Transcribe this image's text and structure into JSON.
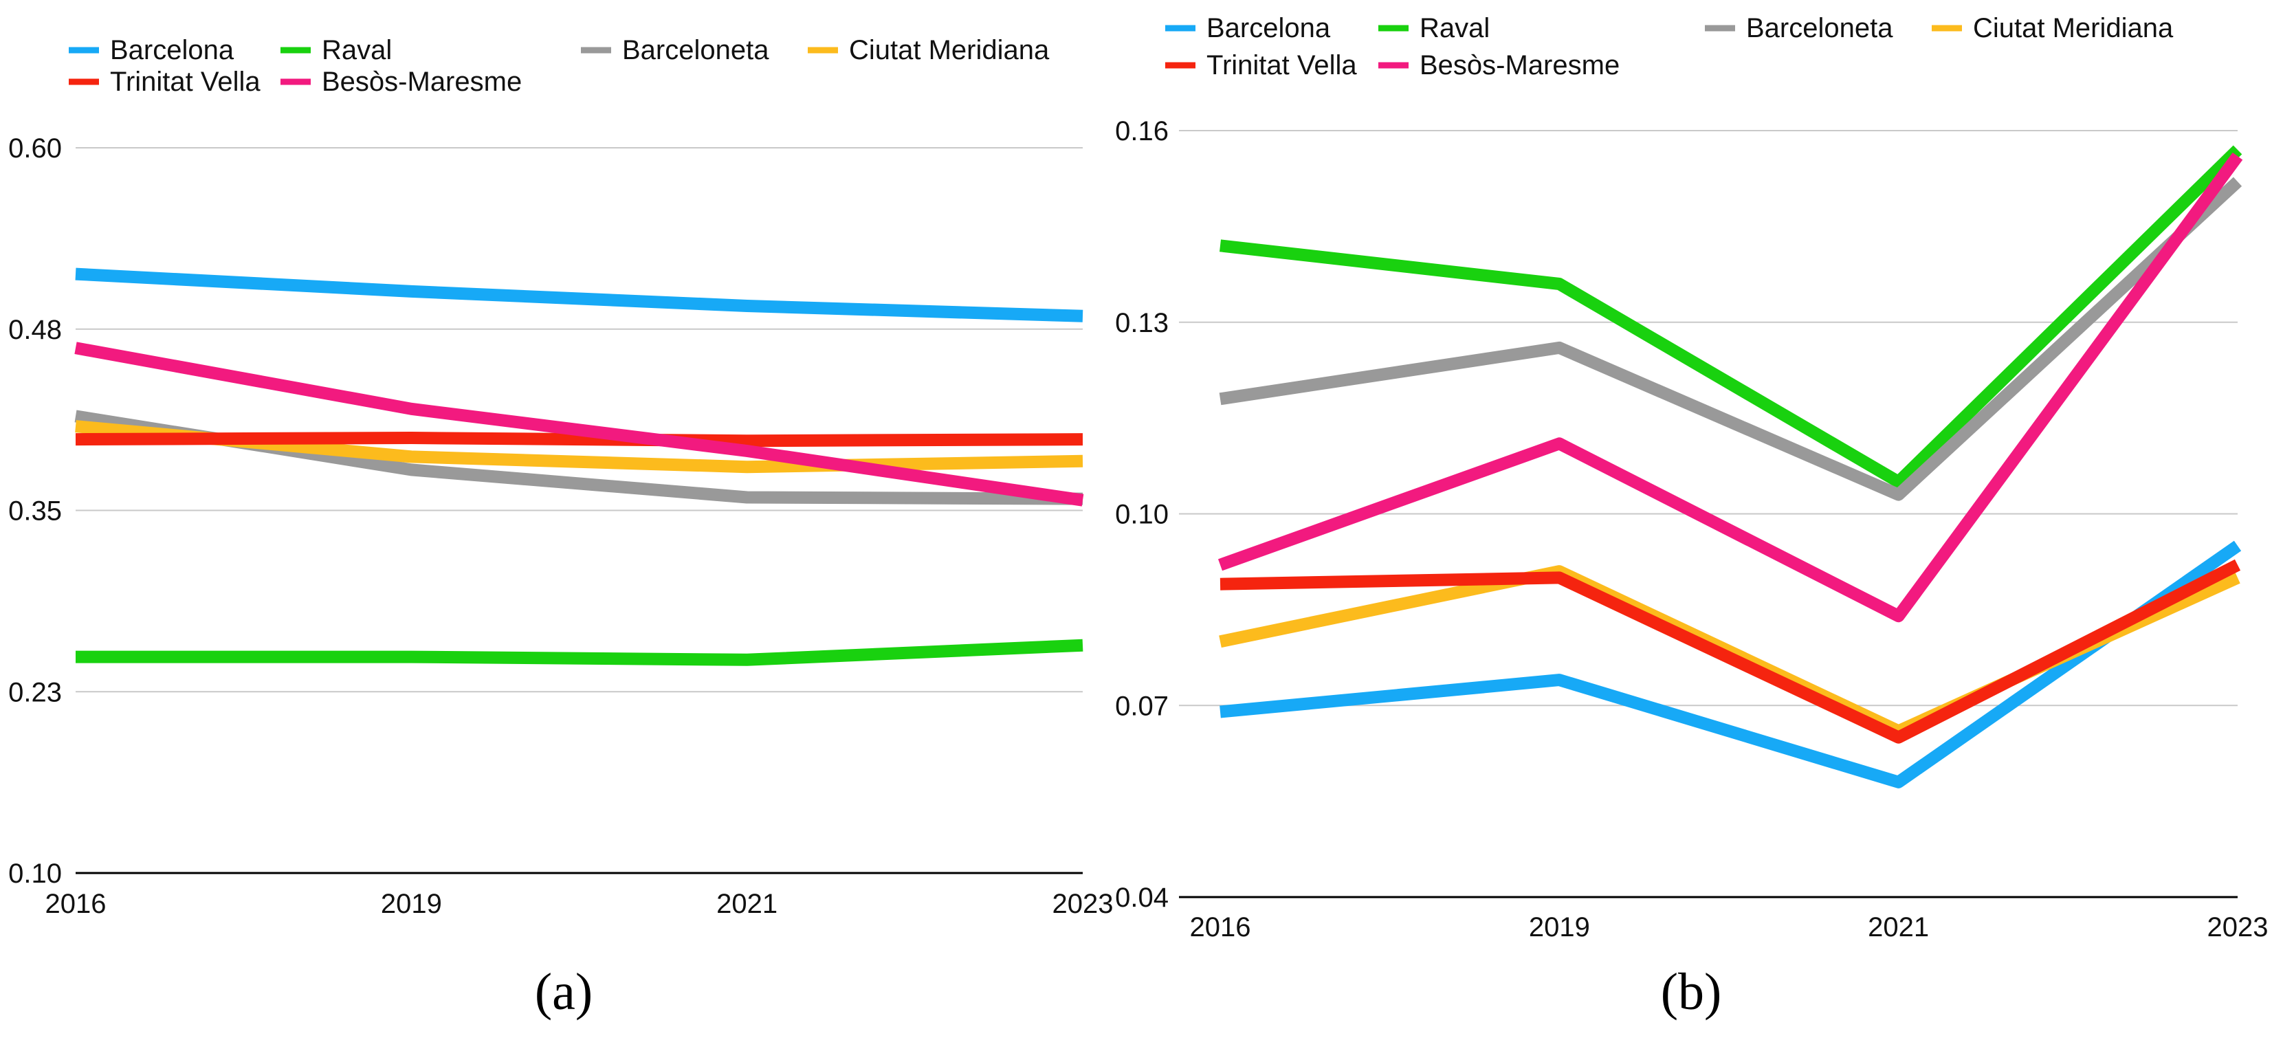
{
  "chart_data": [
    {
      "panel_label": "(a)",
      "type": "line",
      "x": [
        "2016",
        "2019",
        "2021",
        "2023"
      ],
      "ylim": [
        0.1,
        0.6
      ],
      "yticks": [
        "0.10",
        "0.23",
        "0.35",
        "0.48",
        "0.60"
      ],
      "ytick_values": [
        0.1,
        0.225,
        0.35,
        0.475,
        0.6
      ],
      "grid": true,
      "legend": "top",
      "series": [
        {
          "name": "Barcelona",
          "color": "#17a9f6",
          "values": [
            0.513,
            0.501,
            0.491,
            0.484
          ]
        },
        {
          "name": "Raval",
          "color": "#19d10f",
          "values": [
            0.249,
            0.249,
            0.247,
            0.257
          ]
        },
        {
          "name": "Barceloneta",
          "color": "#999999",
          "values": [
            0.415,
            0.378,
            0.359,
            0.358
          ]
        },
        {
          "name": "Ciutat Meridiana",
          "color": "#fcbb1d",
          "values": [
            0.408,
            0.387,
            0.38,
            0.384
          ]
        },
        {
          "name": "Trinitat Vella",
          "color": "#f5240f",
          "values": [
            0.399,
            0.4,
            0.398,
            0.399
          ]
        },
        {
          "name": "Besòs-Maresme",
          "color": "#f21a7f",
          "values": [
            0.462,
            0.42,
            0.391,
            0.357
          ]
        }
      ]
    },
    {
      "panel_label": "(b)",
      "type": "line",
      "x": [
        "2016",
        "2019",
        "2021",
        "2023"
      ],
      "ylim": [
        0.04,
        0.16
      ],
      "yticks": [
        "0.04",
        "0.07",
        "0.10",
        "0.13",
        "0.16"
      ],
      "ytick_values": [
        0.04,
        0.07,
        0.1,
        0.13,
        0.16
      ],
      "grid": true,
      "legend": "top",
      "series": [
        {
          "name": "Barcelona",
          "color": "#17a9f6",
          "values": [
            0.069,
            0.074,
            0.058,
            0.095
          ]
        },
        {
          "name": "Raval",
          "color": "#19d10f",
          "values": [
            0.142,
            0.136,
            0.105,
            0.157
          ]
        },
        {
          "name": "Barceloneta",
          "color": "#999999",
          "values": [
            0.118,
            0.126,
            0.103,
            0.152
          ]
        },
        {
          "name": "Ciutat Meridiana",
          "color": "#fcbb1d",
          "values": [
            0.08,
            0.091,
            0.066,
            0.09
          ]
        },
        {
          "name": "Trinitat Vella",
          "color": "#f5240f",
          "values": [
            0.089,
            0.09,
            0.065,
            0.092
          ]
        },
        {
          "name": "Besòs-Maresme",
          "color": "#f21a7f",
          "values": [
            0.092,
            0.111,
            0.084,
            0.156
          ]
        }
      ]
    }
  ]
}
